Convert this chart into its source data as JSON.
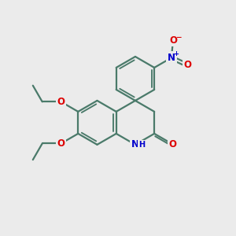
{
  "bg_color": "#ebebeb",
  "bond_color": "#4a7a6a",
  "bond_width": 1.6,
  "atom_colors": {
    "O": "#dd0000",
    "N": "#0000cc",
    "C": "#222222"
  },
  "font_size_atom": 8.5,
  "font_size_small": 6.5,
  "bl": 0.95
}
